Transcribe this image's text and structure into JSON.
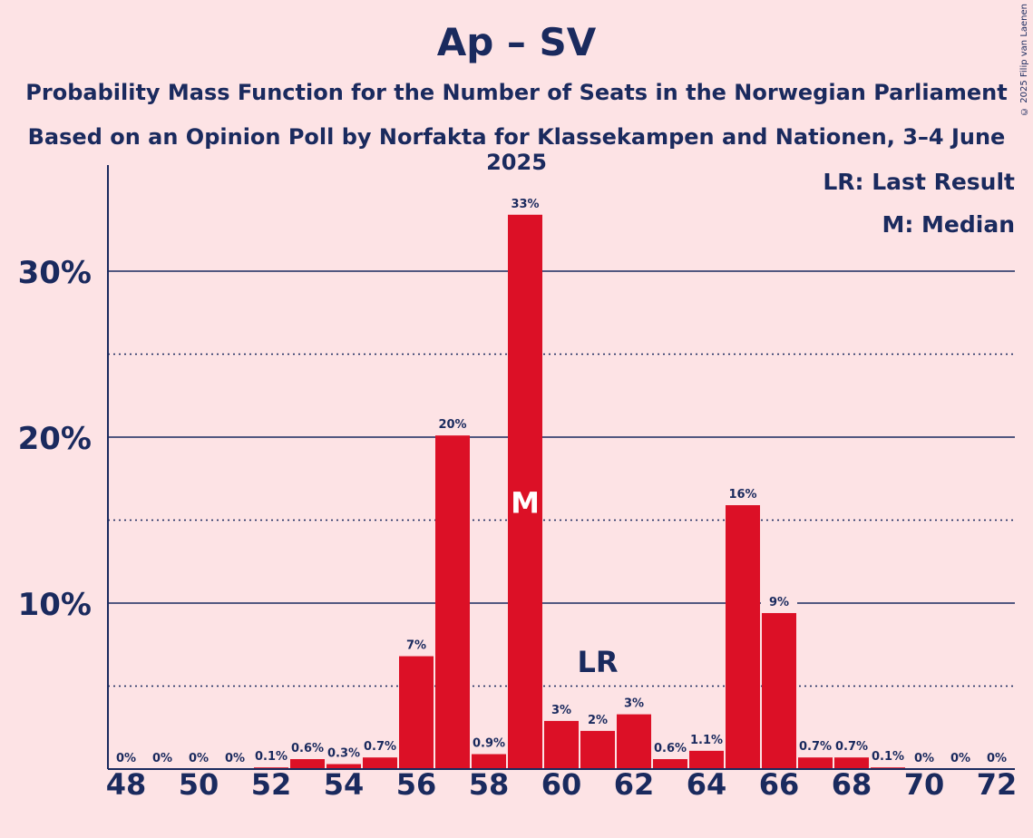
{
  "header": {
    "title": "Ap – SV",
    "subtitle1": "Probability Mass Function for the Number of Seats in the Norwegian Parliament",
    "subtitle2": "Based on an Opinion Poll by Norfakta for Klassekampen and Nationen, 3–4 June 2025",
    "copyright": "© 2025 Filip van Laenen"
  },
  "legend": {
    "lr": "LR: Last Result",
    "m": "M: Median"
  },
  "colors": {
    "background": "#fde3e5",
    "bar": "#dc1026",
    "text": "#1a2a5e"
  },
  "chart_data": {
    "type": "bar",
    "categories": [
      48,
      49,
      50,
      51,
      52,
      53,
      54,
      55,
      56,
      57,
      58,
      59,
      60,
      61,
      62,
      63,
      64,
      65,
      66,
      67,
      68,
      69,
      70,
      71,
      72
    ],
    "values": [
      0,
      0,
      0,
      0,
      0.1,
      0.6,
      0.3,
      0.7,
      6.8,
      20.1,
      0.9,
      33.4,
      2.9,
      2.3,
      3.3,
      0.6,
      1.1,
      15.9,
      9.4,
      0.7,
      0.7,
      0.1,
      0,
      0,
      0
    ],
    "labels": [
      "0%",
      "0%",
      "0%",
      "0%",
      "0.1%",
      "0.6%",
      "0.3%",
      "0.7%",
      "7%",
      "20%",
      "0.9%",
      "33%",
      "3%",
      "2%",
      "3%",
      "0.6%",
      "1.1%",
      "16%",
      "9%",
      "0.7%",
      "0.7%",
      "0.1%",
      "0%",
      "0%",
      "0%"
    ],
    "x_tick_labels": [
      "48",
      "50",
      "52",
      "54",
      "56",
      "58",
      "60",
      "62",
      "64",
      "66",
      "68",
      "70",
      "72"
    ],
    "y_tick_labels": [
      "10%",
      "20%",
      "30%"
    ],
    "y_ticks": [
      10,
      20,
      30
    ],
    "minor_gridlines": [
      5,
      15,
      25
    ],
    "ylim": [
      0,
      36.5
    ],
    "median_seat": 59,
    "median_marker": "M",
    "last_result_seat": 61,
    "last_result_marker": "LR",
    "legend_position": "top-right"
  }
}
